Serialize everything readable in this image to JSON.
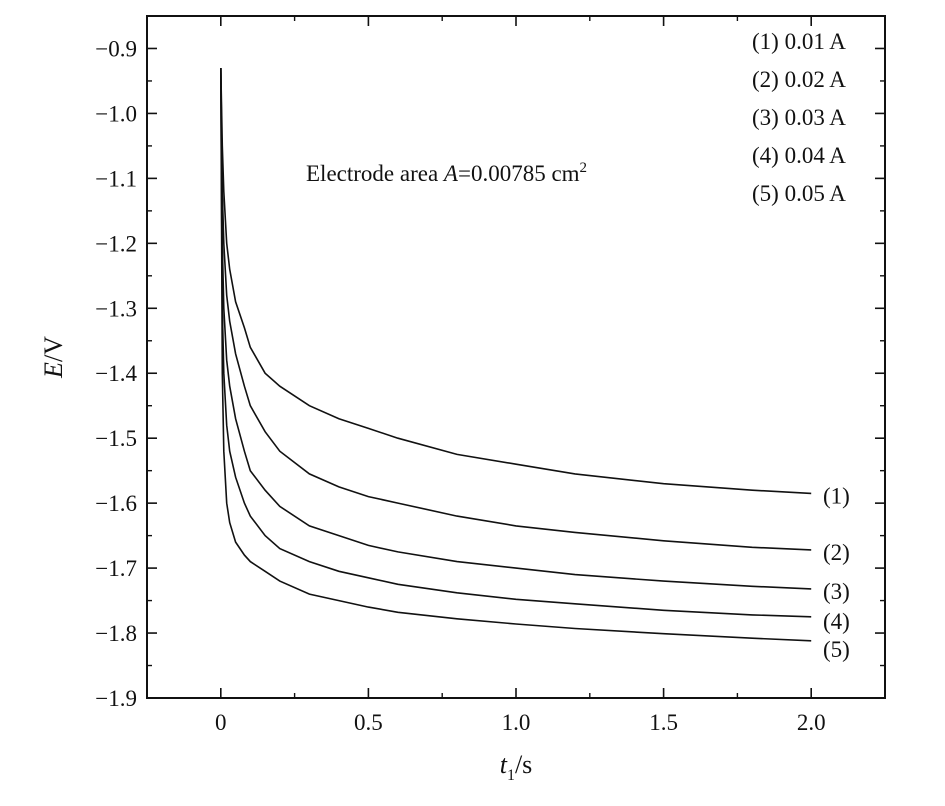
{
  "chart_data": {
    "type": "line",
    "xlabel": {
      "main": "t",
      "sub": "1",
      "unit": "/s"
    },
    "ylabel": {
      "main": "E",
      "unit": "/V"
    },
    "xlim": [
      -0.25,
      2.25
    ],
    "ylim": [
      -1.9,
      -0.85
    ],
    "xticks": [
      {
        "value": 0,
        "label": "0"
      },
      {
        "value": 0.5,
        "label": "0.5"
      },
      {
        "value": 1.0,
        "label": "1.0"
      },
      {
        "value": 1.5,
        "label": "1.5"
      },
      {
        "value": 2.0,
        "label": "2.0"
      }
    ],
    "yticks": [
      {
        "value": -0.9,
        "label": "−0.9"
      },
      {
        "value": -1.0,
        "label": "−1.0"
      },
      {
        "value": -1.1,
        "label": "−1.1"
      },
      {
        "value": -1.2,
        "label": "−1.2"
      },
      {
        "value": -1.3,
        "label": "−1.3"
      },
      {
        "value": -1.4,
        "label": "−1.4"
      },
      {
        "value": -1.5,
        "label": "−1.5"
      },
      {
        "value": -1.6,
        "label": "−1.6"
      },
      {
        "value": -1.7,
        "label": "−1.7"
      },
      {
        "value": -1.8,
        "label": "−1.8"
      },
      {
        "value": -1.9,
        "label": "−1.9"
      }
    ],
    "grid": false,
    "legend_position": "top-right",
    "legend": [
      "(1) 0.01 A",
      "(2) 0.02 A",
      "(3) 0.03 A",
      "(4) 0.04 A",
      "(5) 0.05 A"
    ],
    "annotation": {
      "prefix": "Electrode area ",
      "var": "A",
      "value": "=0.00785 cm",
      "sup": "2"
    },
    "series": [
      {
        "name": "(1)",
        "x": [
          0,
          0.005,
          0.01,
          0.02,
          0.03,
          0.05,
          0.08,
          0.1,
          0.15,
          0.2,
          0.3,
          0.4,
          0.5,
          0.6,
          0.8,
          1.0,
          1.2,
          1.5,
          1.8,
          2.0
        ],
        "y": [
          -0.93,
          -1.05,
          -1.12,
          -1.2,
          -1.24,
          -1.29,
          -1.33,
          -1.36,
          -1.4,
          -1.42,
          -1.45,
          -1.47,
          -1.485,
          -1.5,
          -1.525,
          -1.54,
          -1.555,
          -1.57,
          -1.58,
          -1.585
        ]
      },
      {
        "name": "(2)",
        "x": [
          0,
          0.005,
          0.01,
          0.02,
          0.03,
          0.05,
          0.08,
          0.1,
          0.15,
          0.2,
          0.3,
          0.4,
          0.5,
          0.6,
          0.8,
          1.0,
          1.2,
          1.5,
          1.8,
          2.0
        ],
        "y": [
          -0.93,
          -1.12,
          -1.2,
          -1.28,
          -1.32,
          -1.37,
          -1.42,
          -1.45,
          -1.49,
          -1.52,
          -1.555,
          -1.575,
          -1.59,
          -1.6,
          -1.62,
          -1.635,
          -1.645,
          -1.658,
          -1.668,
          -1.672
        ]
      },
      {
        "name": "(3)",
        "x": [
          0,
          0.005,
          0.01,
          0.02,
          0.03,
          0.05,
          0.08,
          0.1,
          0.15,
          0.2,
          0.3,
          0.4,
          0.5,
          0.6,
          0.8,
          1.0,
          1.2,
          1.5,
          1.8,
          2.0
        ],
        "y": [
          -0.93,
          -1.2,
          -1.3,
          -1.38,
          -1.42,
          -1.47,
          -1.52,
          -1.55,
          -1.58,
          -1.605,
          -1.635,
          -1.65,
          -1.665,
          -1.675,
          -1.69,
          -1.7,
          -1.71,
          -1.72,
          -1.728,
          -1.732
        ]
      },
      {
        "name": "(4)",
        "x": [
          0,
          0.005,
          0.01,
          0.02,
          0.03,
          0.05,
          0.08,
          0.1,
          0.15,
          0.2,
          0.3,
          0.4,
          0.5,
          0.6,
          0.8,
          1.0,
          1.2,
          1.5,
          1.8,
          2.0
        ],
        "y": [
          -0.93,
          -1.3,
          -1.4,
          -1.48,
          -1.52,
          -1.56,
          -1.6,
          -1.62,
          -1.65,
          -1.67,
          -1.69,
          -1.705,
          -1.715,
          -1.725,
          -1.738,
          -1.748,
          -1.755,
          -1.765,
          -1.772,
          -1.775
        ]
      },
      {
        "name": "(5)",
        "x": [
          0,
          0.005,
          0.01,
          0.02,
          0.03,
          0.05,
          0.08,
          0.1,
          0.15,
          0.2,
          0.3,
          0.4,
          0.5,
          0.6,
          0.8,
          1.0,
          1.2,
          1.5,
          1.8,
          2.0
        ],
        "y": [
          -0.93,
          -1.4,
          -1.52,
          -1.6,
          -1.63,
          -1.66,
          -1.68,
          -1.69,
          -1.705,
          -1.72,
          -1.74,
          -1.75,
          -1.76,
          -1.768,
          -1.778,
          -1.786,
          -1.793,
          -1.801,
          -1.808,
          -1.812
        ]
      }
    ],
    "line_color": "#111111"
  }
}
